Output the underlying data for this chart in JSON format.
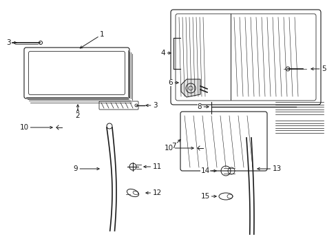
{
  "bg_color": "#ffffff",
  "line_color": "#1a1a1a",
  "label_color": "#1a1a1a",
  "fig_width": 4.89,
  "fig_height": 3.6,
  "dpi": 100
}
